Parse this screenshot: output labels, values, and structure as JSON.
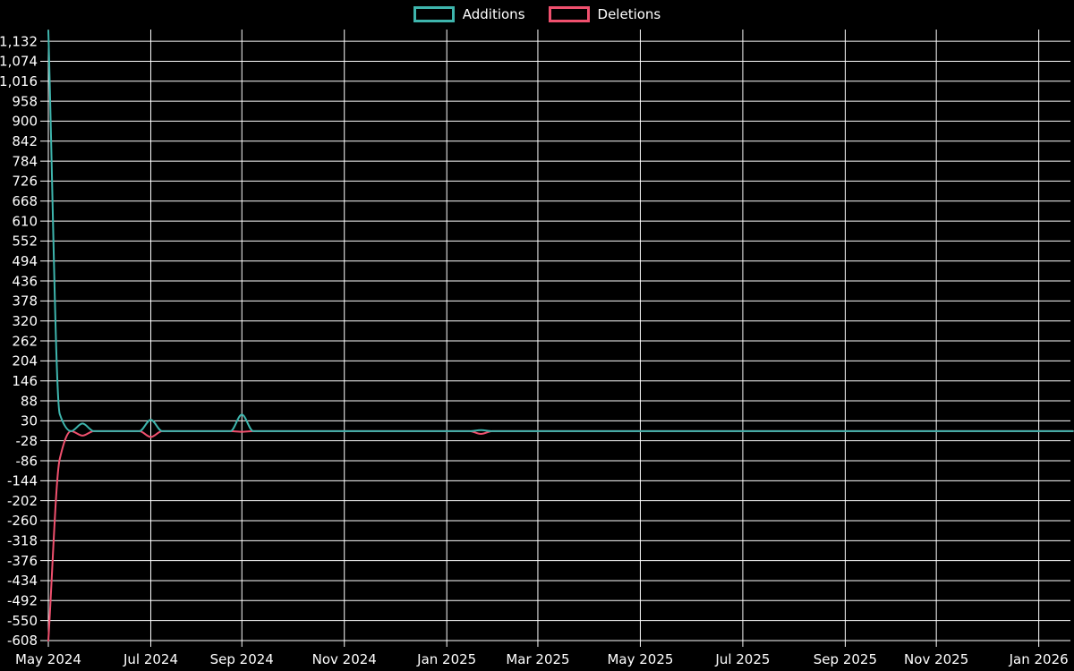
{
  "legend": {
    "position": "top-center",
    "items": [
      {
        "label": "Additions",
        "color": "#3eb5ad"
      },
      {
        "label": "Deletions",
        "color": "#f0506e"
      }
    ]
  },
  "colors": {
    "background": "#000000",
    "grid": "#ffffff",
    "text": "#ffffff",
    "additions": "#3eb5ad",
    "deletions": "#f0506e"
  },
  "chart_data": {
    "type": "line",
    "title": "",
    "xlabel": "",
    "ylabel": "",
    "grid": true,
    "legend_position": "top",
    "x_axis": {
      "unit": "week",
      "weeks_total": 91,
      "tick_labels": [
        "May 2024",
        "Jul 2024",
        "Sep 2024",
        "Nov 2024",
        "Jan 2025",
        "Mar 2025",
        "May 2025",
        "Jul 2025",
        "Sep 2025",
        "Nov 2025",
        "Jan 2026"
      ],
      "tick_week_indices": [
        0,
        9,
        17,
        26,
        35,
        43,
        52,
        61,
        70,
        78,
        87
      ]
    },
    "y_axis": {
      "tick_min": -608,
      "tick_max": 1132,
      "tick_step": 58,
      "tick_labels": [
        "1,132",
        "1,074",
        "1,016",
        "958",
        "900",
        "842",
        "784",
        "726",
        "668",
        "610",
        "552",
        "494",
        "436",
        "378",
        "320",
        "262",
        "204",
        "146",
        "88",
        "30",
        "-28",
        "-86",
        "-144",
        "-202",
        "-260",
        "-318",
        "-376",
        "-434",
        "-492",
        "-550",
        "-608"
      ],
      "value_range": [
        -608,
        1163
      ]
    },
    "series": [
      {
        "name": "Additions",
        "color": "#3eb5ad",
        "default_value": 0,
        "nonzero_points": [
          {
            "week": 0,
            "value": 1163
          },
          {
            "week": 1,
            "value": 50
          },
          {
            "week": 3,
            "value": 22
          },
          {
            "week": 9,
            "value": 33
          },
          {
            "week": 17,
            "value": 48
          },
          {
            "week": 38,
            "value": 3
          }
        ]
      },
      {
        "name": "Deletions",
        "color": "#f0506e",
        "default_value": 0,
        "nonzero_points": [
          {
            "week": 0,
            "value": -608
          },
          {
            "week": 1,
            "value": -81
          },
          {
            "week": 3,
            "value": -13
          },
          {
            "week": 9,
            "value": -17
          },
          {
            "week": 17,
            "value": -2
          },
          {
            "week": 38,
            "value": -8
          }
        ]
      }
    ]
  }
}
